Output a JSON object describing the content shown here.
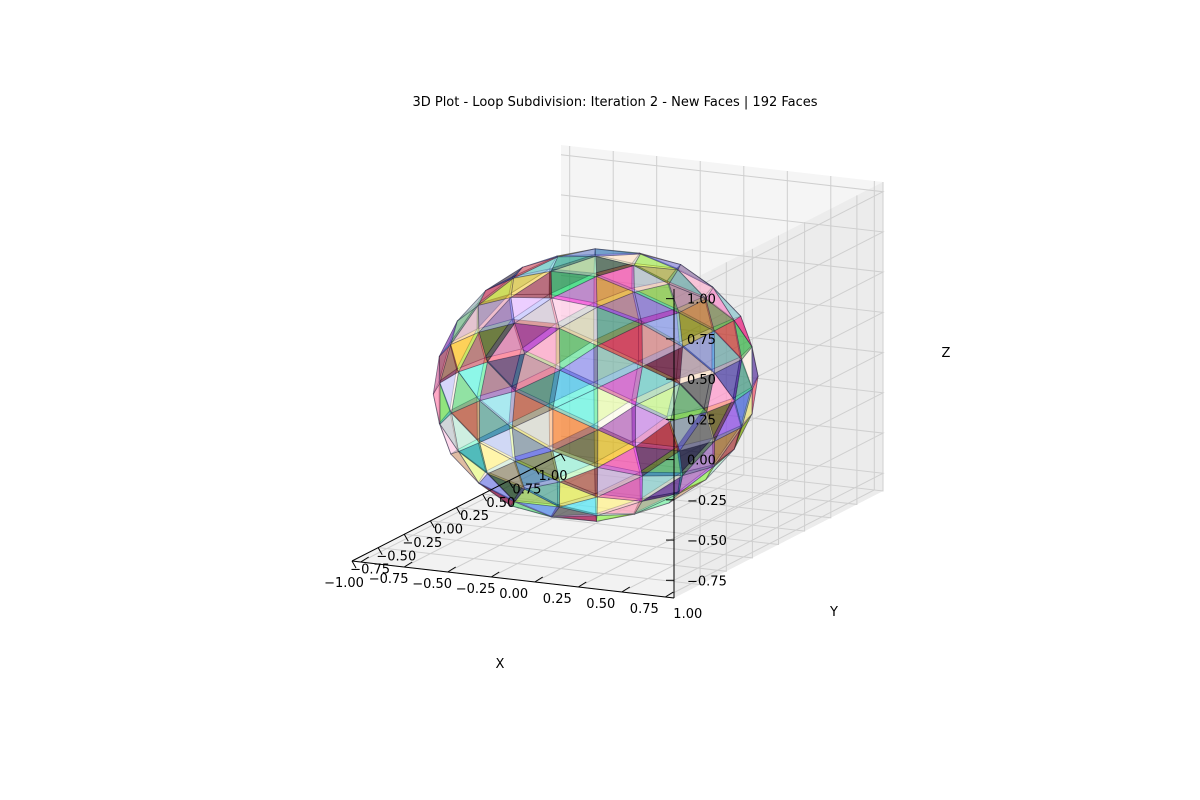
{
  "chart_data": {
    "type": "3d-surface-mesh",
    "title": "3D Plot - Loop Subdivision: Iteration 2 - New Faces | 192 Faces",
    "mesh": {
      "shape": "subdivided-icosahedron-sphere",
      "radius": 0.8,
      "face_count": 192,
      "face_alpha": 0.5,
      "edge_color": "#1a1a3a"
    },
    "axes": {
      "x": {
        "label": "X",
        "lim": [
          -1.0,
          1.0
        ],
        "ticks": [
          -1.0,
          -0.75,
          -0.5,
          -0.25,
          0.0,
          0.25,
          0.5,
          0.75,
          1.0
        ],
        "tick_labels": [
          "−1.00",
          "−0.75",
          "−0.50",
          "−0.25",
          "0.00",
          "0.25",
          "0.50",
          "0.75",
          "1.00"
        ]
      },
      "y": {
        "label": "Y",
        "lim": [
          -0.8,
          1.05
        ],
        "ticks": [
          -0.75,
          -0.5,
          -0.25,
          0.0,
          0.25,
          0.5,
          0.75,
          1.0
        ],
        "tick_labels": [
          "−0.75",
          "−0.50",
          "−0.25",
          "0.00",
          "0.25",
          "0.50",
          "0.75",
          "1.00"
        ]
      },
      "z": {
        "label": "Z",
        "lim": [
          -0.86,
          1.06
        ],
        "ticks": [
          -0.75,
          -0.5,
          -0.25,
          0.0,
          0.25,
          0.5,
          0.75,
          1.0
        ],
        "tick_labels": [
          "−0.75",
          "−0.50",
          "−0.25",
          "0.00",
          "0.25",
          "0.50",
          "0.75",
          "1.00"
        ]
      }
    },
    "grid": true,
    "face_palette": [
      "#e6194b",
      "#3cb44b",
      "#ffe119",
      "#4363d8",
      "#f58231",
      "#911eb4",
      "#46f0f0",
      "#f032e6",
      "#bcf60c",
      "#fabebe",
      "#008080",
      "#e6beff",
      "#9a6324",
      "#fffac8",
      "#800000",
      "#aaffc3",
      "#808000",
      "#ffd8b1",
      "#000075",
      "#808080",
      "#ffffff",
      "#000000",
      "#5a5ae6",
      "#23d96e",
      "#ff69b4",
      "#7fd3ff"
    ]
  }
}
